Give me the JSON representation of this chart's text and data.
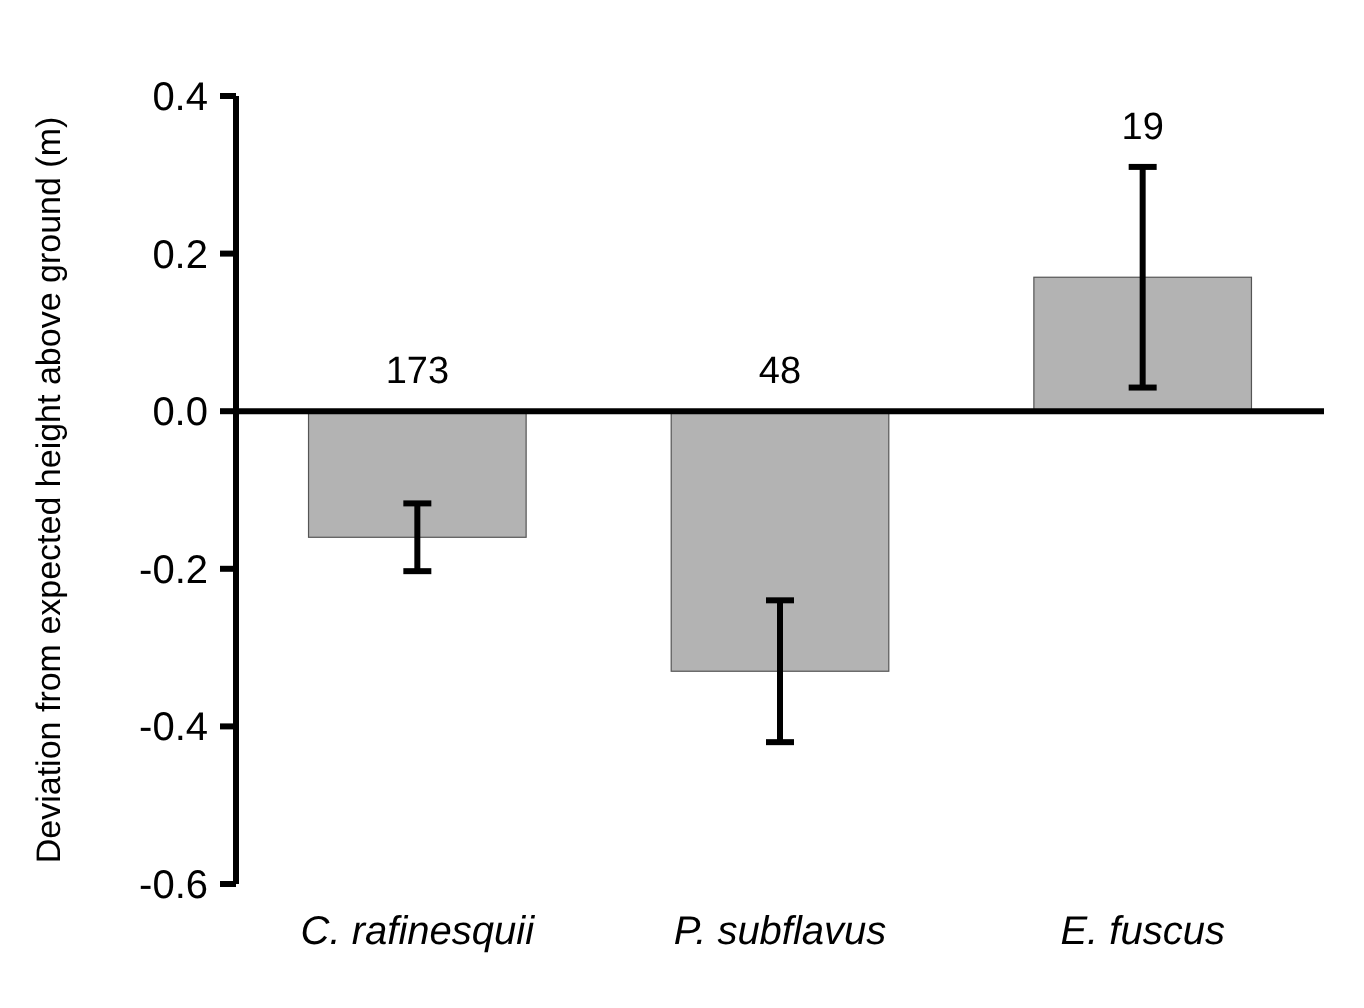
{
  "chart_data": {
    "type": "bar",
    "ylabel": "Deviation from expected height above ground (m)",
    "categories": [
      "C. rafinesquii",
      "P. subflavus",
      "E. fuscus"
    ],
    "values": [
      -0.16,
      -0.33,
      0.17
    ],
    "errors": [
      0.043,
      0.09,
      0.14
    ],
    "color": "#b3b3b3",
    "ylim": [
      -0.6,
      0.4
    ],
    "yticks": [
      {
        "value": -0.6,
        "label": "-0.6"
      },
      {
        "value": -0.4,
        "label": "-0.4"
      },
      {
        "value": -0.2,
        "label": "-0.2"
      },
      {
        "value": 0,
        "label": "0.0"
      },
      {
        "value": 0.2,
        "label": "0.2"
      },
      {
        "value": 0.4,
        "label": "0.4"
      }
    ],
    "annotations": [
      "173",
      "48",
      "19"
    ]
  }
}
